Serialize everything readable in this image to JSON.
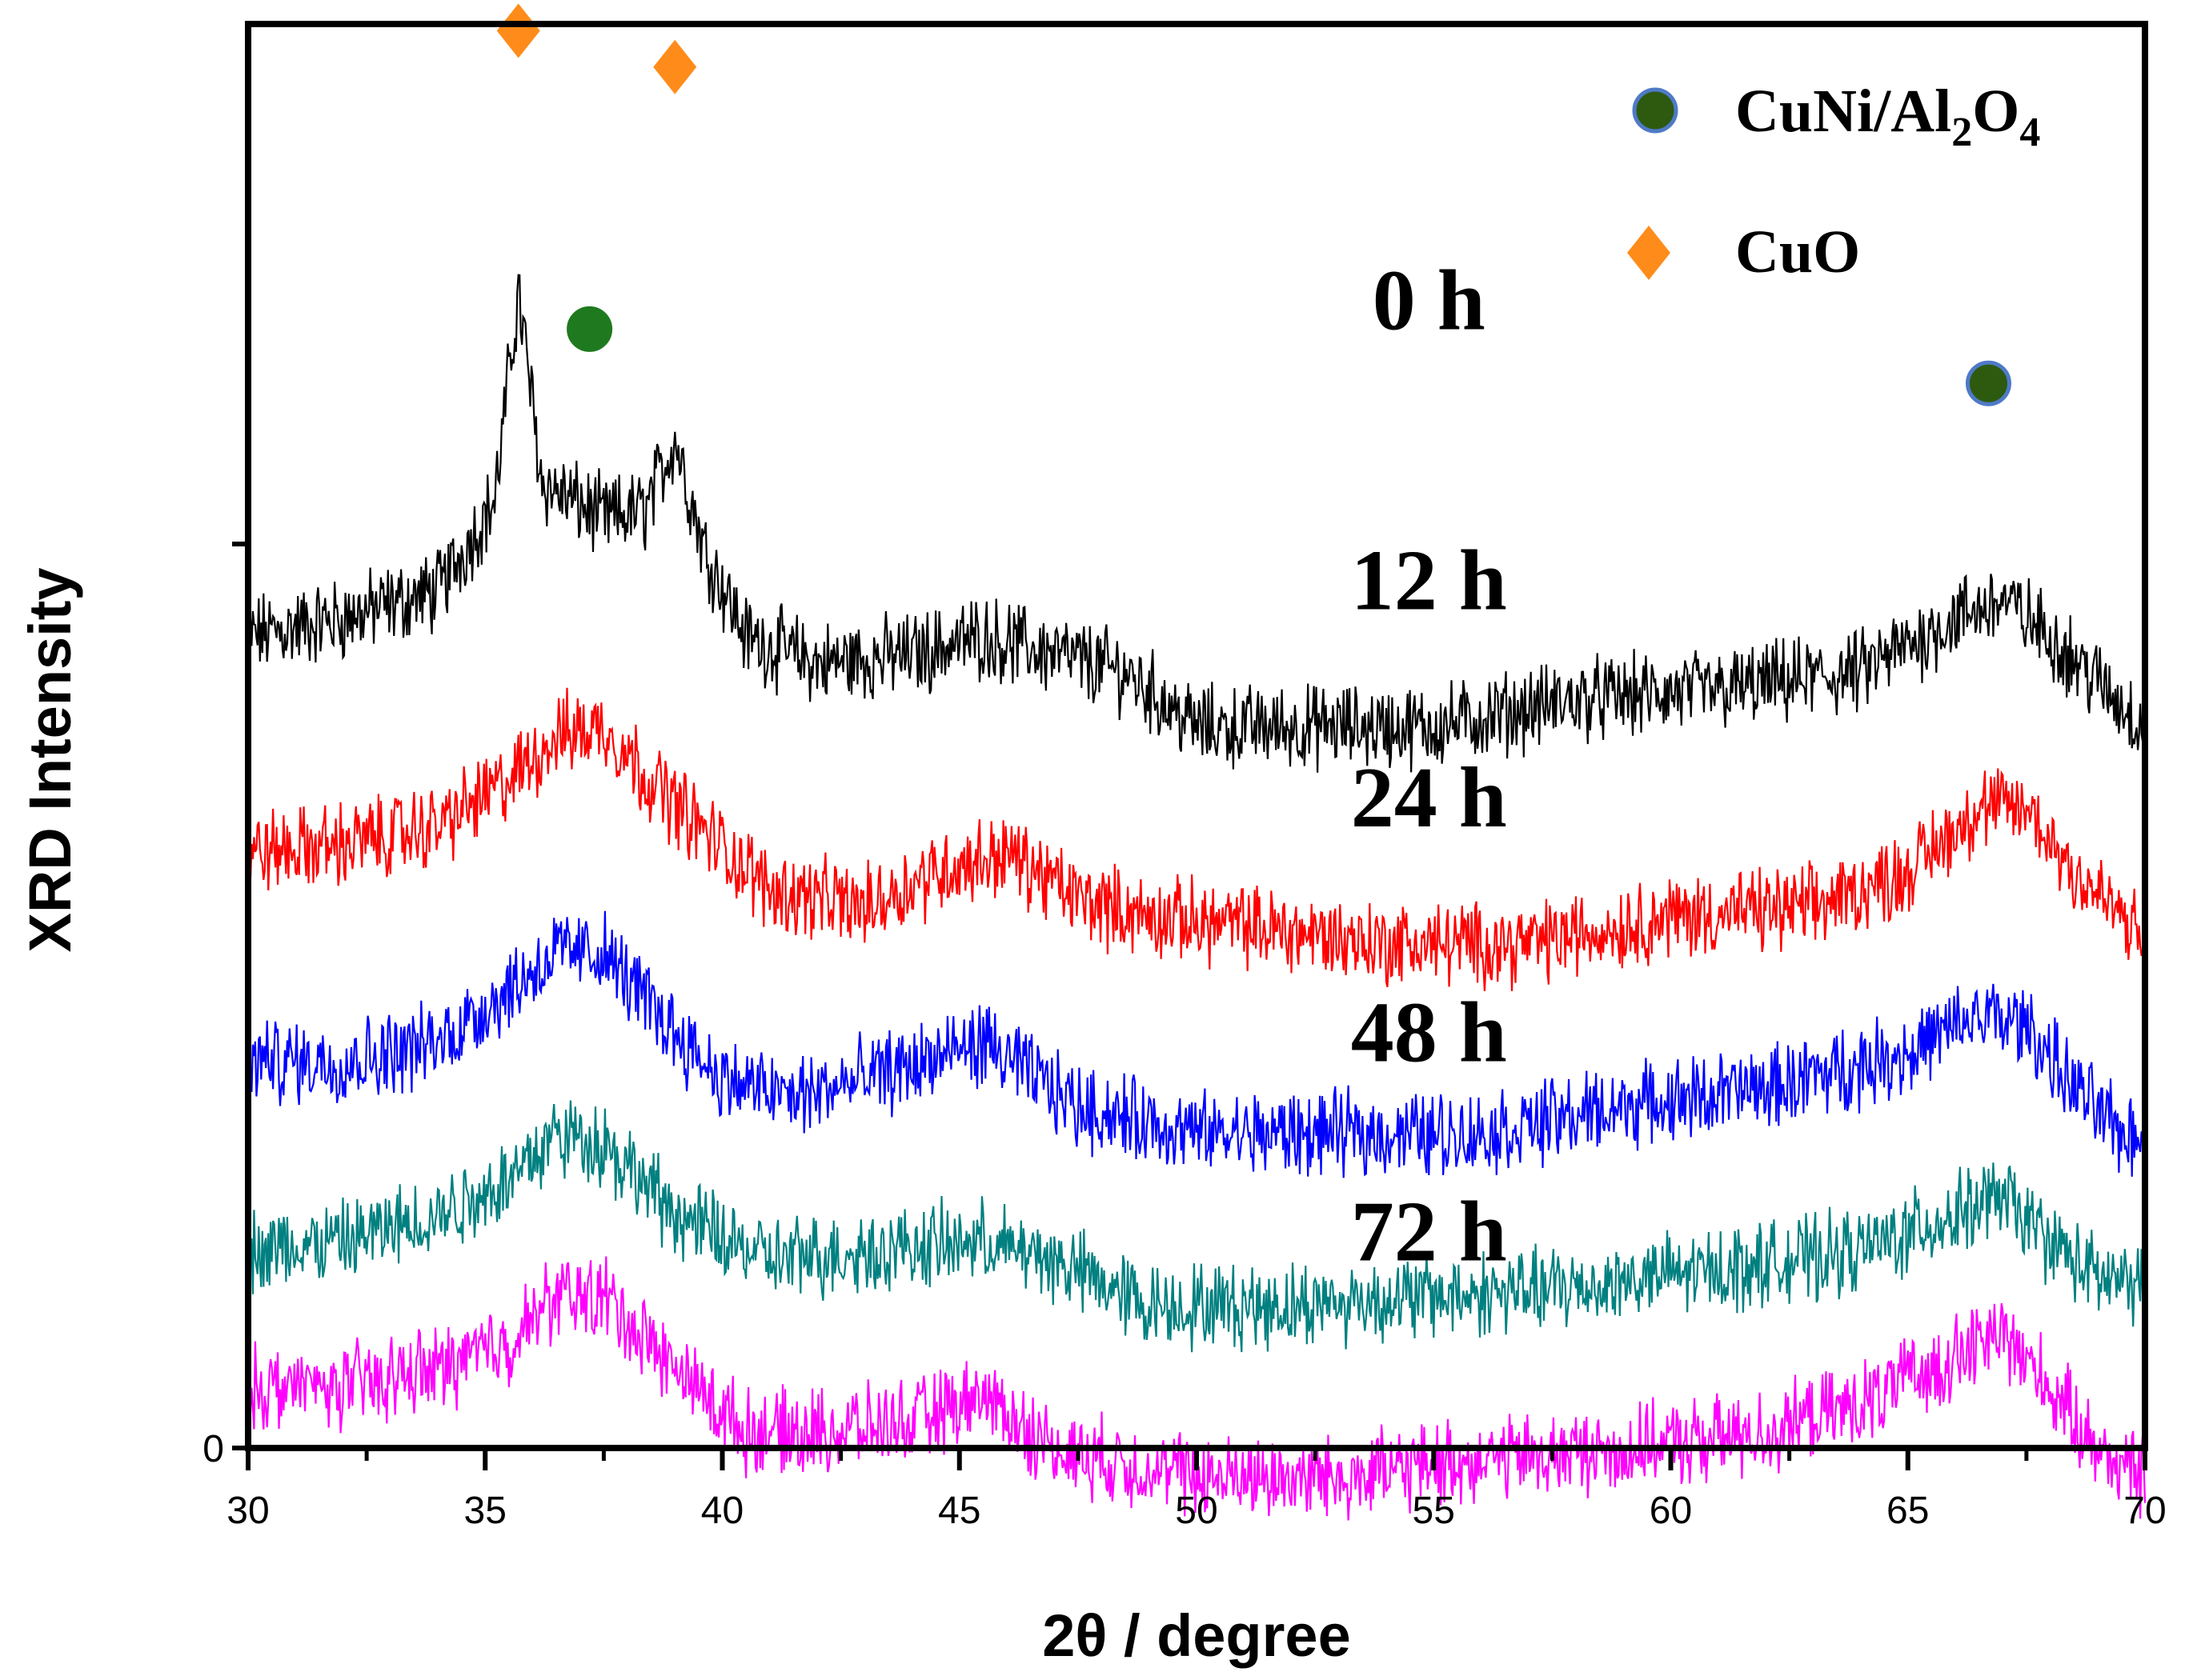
{
  "chart_data": {
    "type": "line",
    "title": "",
    "xlabel": "2θ / degree",
    "ylabel": "XRD Intensity",
    "xlim": [
      30,
      70
    ],
    "x_ticks": [
      30,
      35,
      40,
      45,
      50,
      55,
      60,
      65,
      70
    ],
    "y_tick_label": "0",
    "grid": false,
    "legend_position": "top-right",
    "legend": [
      {
        "marker": "circle",
        "label": "CuNi/Al",
        "sub1": "2",
        "mid": "O",
        "sub2": "4",
        "color": "#2d5a0f",
        "edge": "#4f7ac7"
      },
      {
        "marker": "diamond",
        "label": "CuO",
        "color": "#ff8c1a"
      }
    ],
    "series": [
      {
        "name": "0 h",
        "color": "#000000",
        "offset": 0.78,
        "baseline_points": [
          [
            30,
            0.1
          ],
          [
            32,
            0.12
          ],
          [
            34,
            0.15
          ],
          [
            35.2,
            0.25
          ],
          [
            35.7,
            0.48
          ],
          [
            36.2,
            0.27
          ],
          [
            37.5,
            0.23
          ],
          [
            38.4,
            0.24
          ],
          [
            39.0,
            0.32
          ],
          [
            39.6,
            0.2
          ],
          [
            40.5,
            0.1
          ],
          [
            42,
            0.07
          ],
          [
            44,
            0.08
          ],
          [
            45.5,
            0.1
          ],
          [
            47,
            0.08
          ],
          [
            48.5,
            0.06
          ],
          [
            50,
            0.0
          ],
          [
            52,
            0.0
          ],
          [
            55,
            0.0
          ],
          [
            58,
            0.03
          ],
          [
            61,
            0.04
          ],
          [
            64,
            0.06
          ],
          [
            66,
            0.12
          ],
          [
            67,
            0.14
          ],
          [
            68,
            0.1
          ],
          [
            69,
            0.05
          ],
          [
            70,
            0.0
          ]
        ]
      },
      {
        "name": "12 h",
        "color": "#ff0000",
        "offset": 0.54,
        "baseline_points": [
          [
            30,
            0.1
          ],
          [
            32,
            0.11
          ],
          [
            34,
            0.13
          ],
          [
            35.5,
            0.18
          ],
          [
            36.5,
            0.23
          ],
          [
            37.5,
            0.24
          ],
          [
            38.5,
            0.18
          ],
          [
            39.5,
            0.13
          ],
          [
            41,
            0.06
          ],
          [
            43,
            0.04
          ],
          [
            44.5,
            0.08
          ],
          [
            46,
            0.1
          ],
          [
            47.5,
            0.05
          ],
          [
            49,
            0.03
          ],
          [
            51,
            0.02
          ],
          [
            54,
            0.0
          ],
          [
            57,
            0.0
          ],
          [
            60,
            0.03
          ],
          [
            63,
            0.04
          ],
          [
            65,
            0.08
          ],
          [
            66.5,
            0.15
          ],
          [
            67.5,
            0.15
          ],
          [
            68.5,
            0.08
          ],
          [
            69.5,
            0.03
          ],
          [
            70,
            0.0
          ]
        ]
      },
      {
        "name": "24 h",
        "color": "#0000ff",
        "offset": 0.33,
        "baseline_points": [
          [
            30,
            0.08
          ],
          [
            32,
            0.08
          ],
          [
            34,
            0.1
          ],
          [
            35.5,
            0.16
          ],
          [
            36.5,
            0.2
          ],
          [
            37.5,
            0.2
          ],
          [
            38.5,
            0.14
          ],
          [
            40,
            0.06
          ],
          [
            41.5,
            0.04
          ],
          [
            43,
            0.06
          ],
          [
            45.5,
            0.1
          ],
          [
            47.5,
            0.03
          ],
          [
            50,
            0.0
          ],
          [
            53,
            0.0
          ],
          [
            56,
            0.0
          ],
          [
            59,
            0.03
          ],
          [
            62,
            0.05
          ],
          [
            65,
            0.09
          ],
          [
            66.5,
            0.13
          ],
          [
            67.5,
            0.12
          ],
          [
            68.5,
            0.05
          ],
          [
            69.5,
            0.0
          ],
          [
            70,
            0.0
          ]
        ]
      },
      {
        "name": "48 h",
        "color": "#008080",
        "offset": 0.14,
        "baseline_points": [
          [
            30,
            0.06
          ],
          [
            32,
            0.07
          ],
          [
            34,
            0.1
          ],
          [
            35.5,
            0.14
          ],
          [
            36.5,
            0.19
          ],
          [
            37.5,
            0.18
          ],
          [
            39,
            0.1
          ],
          [
            41,
            0.05
          ],
          [
            43,
            0.06
          ],
          [
            45.5,
            0.07
          ],
          [
            47,
            0.05
          ],
          [
            49,
            0.0
          ],
          [
            52,
            0.0
          ],
          [
            55,
            0.01
          ],
          [
            58,
            0.02
          ],
          [
            61,
            0.04
          ],
          [
            64,
            0.06
          ],
          [
            66,
            0.1
          ],
          [
            67,
            0.12
          ],
          [
            68,
            0.07
          ],
          [
            69,
            0.03
          ],
          [
            70,
            0.02
          ]
        ]
      },
      {
        "name": "72 h",
        "color": "#ff00ff",
        "offset": -0.05,
        "baseline_points": [
          [
            30,
            0.1
          ],
          [
            32,
            0.1
          ],
          [
            34,
            0.12
          ],
          [
            35.5,
            0.15
          ],
          [
            36.5,
            0.2
          ],
          [
            37.5,
            0.2
          ],
          [
            39,
            0.12
          ],
          [
            40.5,
            0.05
          ],
          [
            42,
            0.05
          ],
          [
            44,
            0.06
          ],
          [
            45.5,
            0.09
          ],
          [
            47,
            0.03
          ],
          [
            50,
            0.0
          ],
          [
            53,
            0.0
          ],
          [
            56,
            0.02
          ],
          [
            59,
            0.03
          ],
          [
            62,
            0.05
          ],
          [
            64,
            0.08
          ],
          [
            65.5,
            0.12
          ],
          [
            67,
            0.16
          ],
          [
            68,
            0.1
          ],
          [
            69,
            0.03
          ],
          [
            70,
            0.0
          ]
        ]
      }
    ],
    "markers": [
      {
        "type": "diamond",
        "x": 35.7,
        "intensity": 1.55,
        "color": "#ff8c1a"
      },
      {
        "type": "diamond",
        "x": 39.0,
        "intensity": 1.51,
        "color": "#ff8c1a"
      },
      {
        "type": "circle",
        "x": 37.2,
        "intensity": 1.22,
        "color": "#1f7a1f",
        "edge": "#1f7a1f"
      },
      {
        "type": "circle",
        "x": 66.7,
        "intensity": 1.16,
        "color": "#2d5a0f",
        "edge": "#4f7ac7"
      }
    ],
    "series_labels": [
      {
        "text": "0 h",
        "x": 54.9,
        "intensity": 1.22
      },
      {
        "text": "12 h",
        "x": 54.9,
        "intensity": 0.91
      },
      {
        "text": "24 h",
        "x": 54.9,
        "intensity": 0.67
      },
      {
        "text": "48 h",
        "x": 54.9,
        "intensity": 0.41
      },
      {
        "text": "72 h",
        "x": 54.9,
        "intensity": 0.19
      }
    ]
  }
}
